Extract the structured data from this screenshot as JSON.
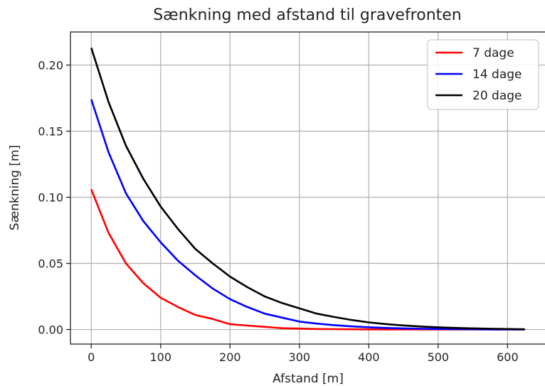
{
  "chart_data": {
    "type": "line",
    "title": "Sænkning med afstand til gravefronten",
    "xlabel": "Afstand [m]",
    "ylabel": "Sænkning [m]",
    "xlim": [
      -30,
      655
    ],
    "ylim": [
      -0.011,
      0.225
    ],
    "xticks": [
      0,
      100,
      200,
      300,
      400,
      500,
      600
    ],
    "yticks": [
      0.0,
      0.05,
      0.1,
      0.15,
      0.2
    ],
    "xtick_labels": [
      "0",
      "100",
      "200",
      "300",
      "400",
      "500",
      "600"
    ],
    "ytick_labels": [
      "0.00",
      "0.05",
      "0.10",
      "0.15",
      "0.20"
    ],
    "grid": true,
    "legend_position": "top-right",
    "x": [
      0,
      25,
      50,
      75,
      100,
      125,
      150,
      175,
      200,
      225,
      250,
      275,
      300,
      325,
      350,
      375,
      400,
      425,
      450,
      475,
      500,
      525,
      550,
      575,
      600,
      625
    ],
    "series": [
      {
        "name": "7 dage",
        "color": "#ff0000",
        "values": [
          0.106,
          0.073,
          0.05,
          0.035,
          0.024,
          0.017,
          0.011,
          0.008,
          0.004,
          0.003,
          0.002,
          0.001,
          0.0007,
          0.0004,
          0.0003,
          0.0002,
          0.0001,
          0.0001,
          0.0,
          0.0,
          0.0,
          0.0,
          0.0,
          0.0,
          0.0,
          0.0
        ]
      },
      {
        "name": "14 dage",
        "color": "#0000ff",
        "values": [
          0.174,
          0.134,
          0.103,
          0.082,
          0.066,
          0.052,
          0.041,
          0.031,
          0.023,
          0.017,
          0.012,
          0.009,
          0.006,
          0.0045,
          0.0033,
          0.0024,
          0.0017,
          0.0012,
          0.0009,
          0.0006,
          0.0004,
          0.0003,
          0.0002,
          0.0001,
          0.0001,
          0.0
        ]
      },
      {
        "name": "20 dage",
        "color": "#000000",
        "values": [
          0.213,
          0.172,
          0.139,
          0.114,
          0.093,
          0.076,
          0.061,
          0.05,
          0.04,
          0.032,
          0.025,
          0.02,
          0.016,
          0.012,
          0.0095,
          0.0072,
          0.0054,
          0.0041,
          0.0031,
          0.0023,
          0.0017,
          0.0012,
          0.0009,
          0.0006,
          0.0004,
          0.0002
        ]
      }
    ]
  }
}
